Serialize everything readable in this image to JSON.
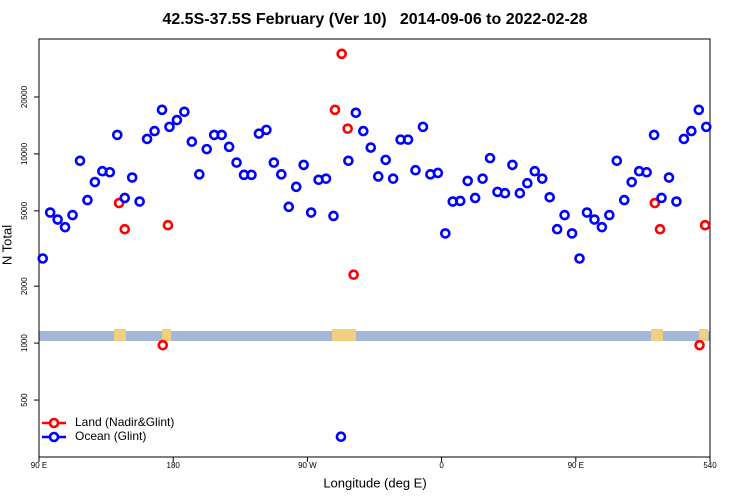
{
  "chart_data": {
    "type": "scatter",
    "title": "42.5S-37.5S February (Ver 10)   2014-09-06 to 2022-02-28",
    "x_label": "Longitude (deg E)",
    "y_label": "N Total",
    "log_y": true,
    "legend": "bottom-left",
    "xlim": [
      90,
      540
    ],
    "xticks": [
      {
        "value": 90,
        "label": "90 E"
      },
      180,
      {
        "value": 270,
        "label": "90 W"
      },
      {
        "value": 360,
        "label": "0"
      },
      {
        "value": 450,
        "label": "90 E"
      },
      540
    ],
    "ylim": [
      250,
      40500
    ],
    "yticks": [
      500,
      1000,
      2000,
      5000,
      10000,
      20000
    ],
    "series": [
      {
        "name": "Land (Nadir&Glint)",
        "color": "#ff0000",
        "x": [
          143.7,
          147.5,
          173,
          176.5,
          288.5,
          293,
          297,
          301,
          503,
          506.5,
          533,
          536.7
        ],
        "values": [
          5500,
          4000,
          975,
          4200,
          17100,
          33800,
          13600,
          2300,
          5500,
          4000,
          975,
          4200
        ]
      },
      {
        "name": "Ocean (Glint)",
        "color": "#0000ff",
        "x": [
          92.5,
          97.5,
          102.5,
          107.5,
          112.5,
          117.5,
          122.5,
          127.5,
          132.5,
          137.5,
          142.5,
          147.5,
          152.5,
          157.5,
          162.5,
          167.5,
          172.5,
          177.5,
          182.5,
          187.5,
          192.5,
          197.5,
          202.5,
          207.5,
          212.5,
          217.5,
          222.5,
          227.5,
          232.5,
          237.5,
          242.5,
          247.5,
          252.5,
          257.5,
          262.5,
          267.5,
          272.5,
          277.5,
          282.5,
          287.5,
          292.5,
          297.5,
          302.5,
          307.5,
          312.5,
          317.5,
          322.5,
          327.5,
          332.5,
          337.5,
          342.5,
          347.5,
          352.5,
          357.5,
          362.5,
          367.5,
          372.5,
          377.5,
          382.5,
          387.5,
          392.5,
          397.5,
          402.5,
          407.5,
          412.5,
          417.5,
          422.5,
          427.5,
          432.5,
          437.5,
          442.5,
          447.5,
          452.5,
          457.5,
          462.5,
          467.5,
          472.5,
          477.5,
          482.5,
          487.5,
          492.5,
          497.5,
          502.5,
          507.5,
          512.5,
          517.5,
          522.5,
          527.5,
          532.5,
          537.5
        ],
        "values": [
          2800,
          4900,
          4500,
          4100,
          4750,
          9200,
          5700,
          7100,
          8100,
          8000,
          12600,
          5850,
          7500,
          5600,
          12000,
          13200,
          17100,
          13900,
          15100,
          16700,
          11600,
          7800,
          10600,
          12600,
          12600,
          10900,
          9000,
          7750,
          7750,
          12800,
          13400,
          9000,
          7800,
          5250,
          6700,
          8750,
          4900,
          7300,
          7400,
          4700,
          320,
          9200,
          16500,
          13200,
          10800,
          7600,
          9300,
          7400,
          11900,
          11900,
          8200,
          13900,
          7800,
          7930,
          3800,
          5600,
          5640,
          7200,
          5850,
          7400,
          9500,
          6300,
          6200,
          8750,
          6200,
          7000,
          8100,
          7400,
          5900,
          4000,
          4750,
          3800,
          2800,
          4900,
          4500,
          4100,
          4750,
          9200,
          5700,
          7100,
          8100,
          8000,
          12600,
          5850,
          7500,
          5600,
          12000,
          13200,
          17100,
          13900
        ]
      }
    ]
  }
}
